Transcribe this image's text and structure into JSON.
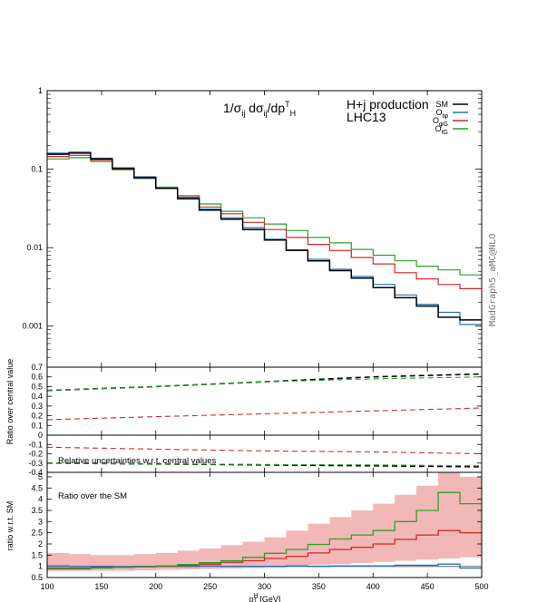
{
  "chart_data": [
    {
      "type": "line",
      "panel": "main",
      "title": "1/σij dσij/dpTH",
      "title_parts": {
        "a": "1/σ",
        "b": "ij",
        "c": " dσ",
        "d": "ij",
        "e": "/dp",
        "f": "T",
        "g": "H"
      },
      "annotation": [
        "H+j production",
        "LHC13"
      ],
      "y_scale": "log",
      "ylim": [
        0.0003,
        1
      ],
      "y_ticks": [
        "1",
        "0.1",
        "0.01",
        "0.001"
      ],
      "legend_position": "top-right",
      "legend": [
        {
          "name": "SM",
          "base": "SM",
          "sub": ""
        },
        {
          "name": "Otφ",
          "base": "O",
          "sub": "tφ"
        },
        {
          "name": "OφG",
          "base": "O",
          "sub": "φG"
        },
        {
          "name": "OtG",
          "base": "O",
          "sub": "tG"
        }
      ],
      "x_edges": [
        100,
        120,
        140,
        160,
        180,
        200,
        220,
        240,
        260,
        280,
        300,
        320,
        340,
        360,
        380,
        400,
        420,
        440,
        460,
        480,
        500
      ],
      "series": [
        {
          "name": "SM",
          "color": "#000000",
          "values": [
            0.155,
            0.16,
            0.135,
            0.102,
            0.078,
            0.057,
            0.042,
            0.03,
            0.023,
            0.017,
            0.0125,
            0.0092,
            0.0068,
            0.0051,
            0.0041,
            0.0031,
            0.0023,
            0.0018,
            0.0013,
            0.0012
          ]
        },
        {
          "name": "Otφ",
          "color": "#1f77b4",
          "values": [
            0.16,
            0.165,
            0.138,
            0.104,
            0.08,
            0.058,
            0.043,
            0.031,
            0.024,
            0.018,
            0.0128,
            0.0094,
            0.0071,
            0.0053,
            0.0043,
            0.0034,
            0.0025,
            0.0019,
            0.0015,
            0.00105
          ]
        },
        {
          "name": "OφG",
          "color": "#d62728",
          "values": [
            0.145,
            0.15,
            0.13,
            0.1,
            0.077,
            0.058,
            0.044,
            0.033,
            0.027,
            0.021,
            0.017,
            0.0135,
            0.011,
            0.0092,
            0.0075,
            0.0062,
            0.0048,
            0.004,
            0.0034,
            0.003
          ]
        },
        {
          "name": "OtG",
          "color": "#2ca02c",
          "values": [
            0.135,
            0.14,
            0.125,
            0.098,
            0.076,
            0.059,
            0.046,
            0.036,
            0.029,
            0.024,
            0.02,
            0.0165,
            0.0135,
            0.0115,
            0.0095,
            0.008,
            0.0068,
            0.0058,
            0.0052,
            0.0045
          ]
        }
      ],
      "side_label": "MadGraph5_aMC@NLO"
    },
    {
      "type": "line",
      "panel": "ratio-over-central",
      "ylim": [
        0,
        0.7
      ],
      "y_ticks": [
        "0.7",
        "0.6",
        "0.5",
        "0.4",
        "0.3",
        "0.2",
        "0.1",
        "0"
      ],
      "ylabel": "Ratio over central value",
      "x": [
        100,
        200,
        300,
        400,
        500
      ],
      "series": [
        {
          "name": "SM",
          "color": "#000000",
          "values": [
            0.46,
            0.5,
            0.55,
            0.6,
            0.63
          ]
        },
        {
          "name": "OtG",
          "color": "#2ca02c",
          "values": [
            0.46,
            0.5,
            0.55,
            0.58,
            0.6
          ]
        },
        {
          "name": "OφG",
          "color": "#d62728",
          "values": [
            0.16,
            0.19,
            0.22,
            0.25,
            0.28
          ]
        }
      ]
    },
    {
      "type": "line",
      "panel": "relative-uncertainties",
      "ylim": [
        -0.4,
        0
      ],
      "y_ticks": [
        "-0.1",
        "-0.2",
        "-0.3",
        "-0.4"
      ],
      "annotation": "Relative uncertainties w.r.t. central values",
      "x": [
        100,
        200,
        300,
        400,
        500
      ],
      "series": [
        {
          "name": "SM",
          "color": "#000000",
          "values": [
            -0.3,
            -0.31,
            -0.32,
            -0.33,
            -0.34
          ]
        },
        {
          "name": "OtG",
          "color": "#2ca02c",
          "values": [
            -0.3,
            -0.31,
            -0.315,
            -0.32,
            -0.33
          ]
        },
        {
          "name": "OφG",
          "color": "#d62728",
          "values": [
            -0.13,
            -0.15,
            -0.17,
            -0.18,
            -0.2
          ]
        }
      ]
    },
    {
      "type": "line",
      "panel": "ratio-over-SM",
      "ylim": [
        0.5,
        5.2
      ],
      "y_ticks": [
        "5",
        "4.5",
        "4",
        "3.5",
        "3",
        "2.5",
        "2",
        "1.5",
        "1",
        "0.5"
      ],
      "ylabel": "ratio w.r.t. SM",
      "annotation": "Ratio over the SM",
      "xlabel": "pHT [GeV]",
      "xlabel_parts": {
        "a": "p",
        "b": "H",
        "c": "T",
        "d": " [GeV]"
      },
      "xlim": [
        100,
        500
      ],
      "x_ticks": [
        "100",
        "150",
        "200",
        "250",
        "300",
        "350",
        "400",
        "450",
        "500"
      ],
      "x_edges": [
        100,
        120,
        140,
        160,
        180,
        200,
        220,
        240,
        260,
        280,
        300,
        320,
        340,
        360,
        380,
        400,
        420,
        440,
        460,
        480,
        500
      ],
      "band": {
        "name": "OφG uncertainty",
        "color": "#f2b8b8",
        "lower": [
          0.8,
          0.8,
          0.8,
          0.8,
          0.82,
          0.84,
          0.86,
          0.88,
          0.9,
          0.92,
          0.95,
          1.0,
          1.05,
          1.1,
          1.15,
          1.2,
          1.25,
          1.3,
          1.35,
          1.4
        ],
        "upper": [
          1.6,
          1.55,
          1.5,
          1.5,
          1.55,
          1.6,
          1.7,
          1.8,
          1.95,
          2.1,
          2.3,
          2.6,
          2.9,
          3.2,
          3.5,
          3.8,
          4.2,
          4.6,
          5.2,
          5.0
        ]
      },
      "series": [
        {
          "name": "SM",
          "color": "#888888",
          "values": [
            1,
            1,
            1,
            1,
            1,
            1,
            1,
            1,
            1,
            1,
            1,
            1,
            1,
            1,
            1,
            1,
            1,
            1,
            1,
            1
          ]
        },
        {
          "name": "Otφ",
          "color": "#1f77b4",
          "values": [
            1.02,
            1.0,
            1.0,
            0.98,
            1.0,
            1.0,
            1.0,
            1.02,
            1.0,
            1.0,
            1.0,
            1.02,
            1.0,
            1.02,
            1.02,
            1.02,
            1.05,
            1.05,
            1.1,
            0.92
          ]
        },
        {
          "name": "OφG",
          "color": "#d62728",
          "values": [
            0.92,
            0.92,
            0.95,
            0.96,
            0.98,
            1.0,
            1.04,
            1.1,
            1.18,
            1.25,
            1.35,
            1.45,
            1.6,
            1.75,
            1.85,
            2.0,
            2.2,
            2.4,
            2.6,
            2.5
          ]
        },
        {
          "name": "OtG",
          "color": "#2ca02c",
          "values": [
            0.88,
            0.88,
            0.92,
            0.95,
            0.97,
            1.02,
            1.08,
            1.16,
            1.25,
            1.4,
            1.58,
            1.75,
            1.98,
            2.22,
            2.4,
            2.6,
            3.0,
            3.5,
            4.3,
            3.8
          ]
        }
      ]
    }
  ]
}
